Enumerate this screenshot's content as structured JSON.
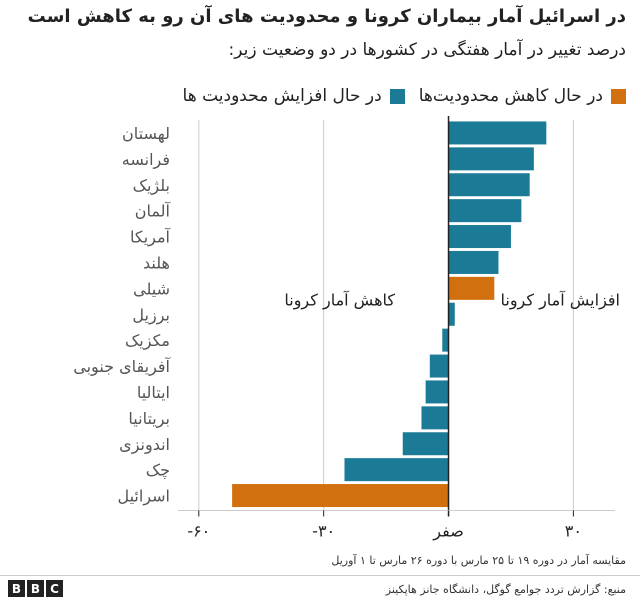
{
  "title": "در اسرائیل آمار بیماران کرونا و محدودیت های آن رو به کاهش است",
  "subtitle": "درصد تغییر در آمار هفتگی در کشورها در دو وضعیت زیر:",
  "colors": {
    "decreasing": "#d2700f",
    "increasing": "#1b7a96",
    "axis": "#222222",
    "grid": "#cccccc",
    "label": "#555555"
  },
  "legend": {
    "decreasing_label": "در حال کاهش محدودیت‌ها",
    "increasing_label": "در حال افزایش محدودیت ها"
  },
  "annotations": {
    "increase": "افزایش آمار کرونا",
    "decrease": "کاهش آمار کرونا"
  },
  "note": "مقایسه آمار در دوره ۱۹ تا ۲۵ مارس با دوره ۲۶ مارس تا ۱ آوریل",
  "source": "منبع: گزارش تردد جوامع گوگل، دانشگاه جانز هاپکینز",
  "logo": [
    "B",
    "B",
    "C"
  ],
  "chart_data": {
    "type": "bar",
    "orientation": "horizontal",
    "xlim": [
      -65,
      40
    ],
    "xticks": [
      {
        "value": -60,
        "label": "-۶۰"
      },
      {
        "value": -30,
        "label": "-۳۰"
      },
      {
        "value": 0,
        "label": "صفر"
      },
      {
        "value": 30,
        "label": "۳۰"
      }
    ],
    "grid": true,
    "categories": [
      "لهستان",
      "فرانسه",
      "بلژیک",
      "آلمان",
      "آمریکا",
      "هلند",
      "شیلی",
      "برزیل",
      "مکزیک",
      "آفریقای جنوبی",
      "ایتالیا",
      "بریتانیا",
      "اندونزی",
      "چک",
      "اسرائیل"
    ],
    "values": [
      23.5,
      20.5,
      19.5,
      17.5,
      15,
      12,
      11,
      1.5,
      -1.5,
      -4.5,
      -5.5,
      -6.5,
      -11,
      -25,
      -52
    ],
    "group": [
      "increasing",
      "increasing",
      "increasing",
      "increasing",
      "increasing",
      "increasing",
      "decreasing",
      "increasing",
      "increasing",
      "increasing",
      "increasing",
      "increasing",
      "increasing",
      "increasing",
      "decreasing"
    ]
  }
}
